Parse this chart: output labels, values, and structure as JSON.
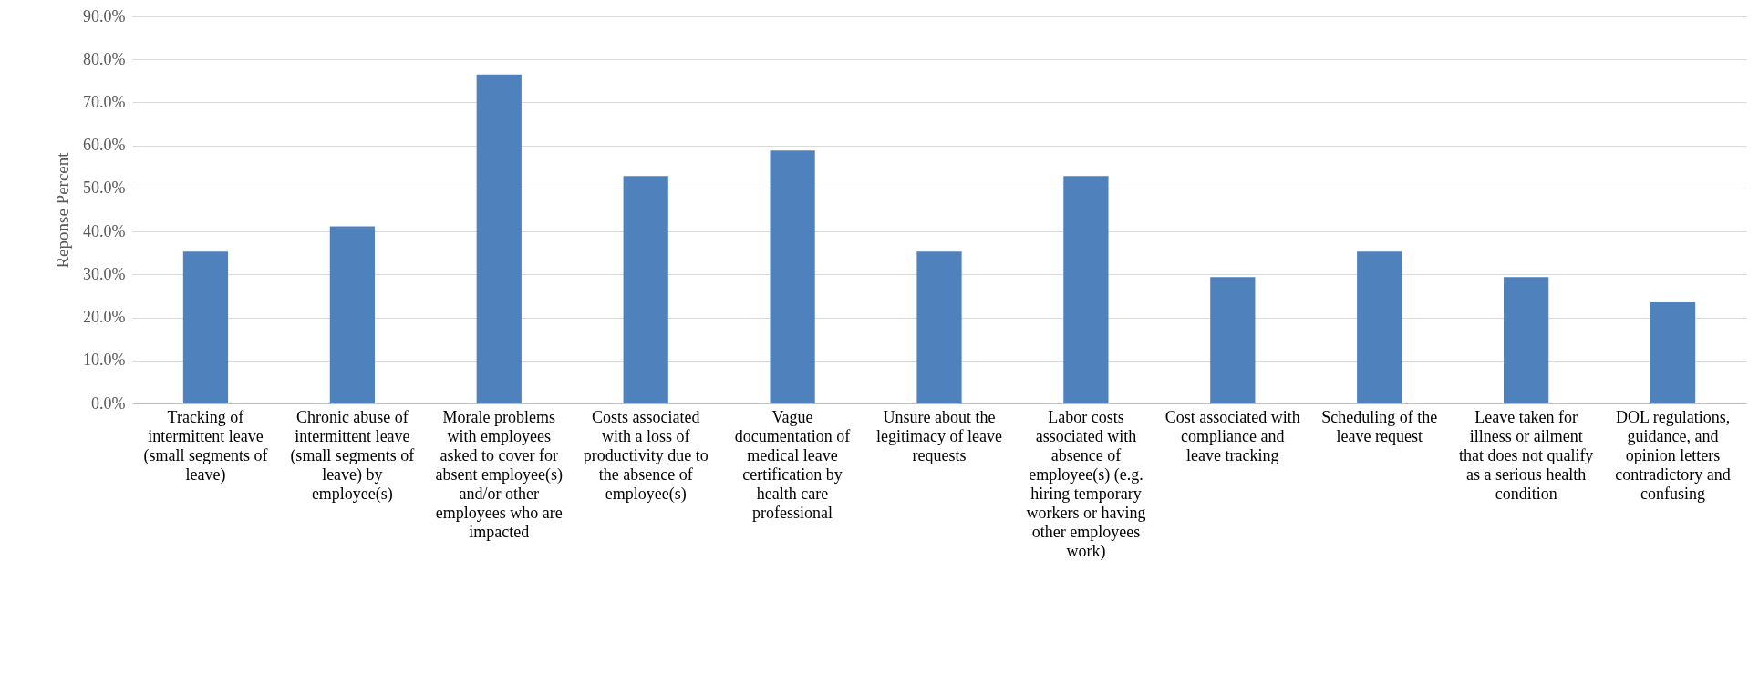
{
  "chart_data": {
    "type": "bar",
    "ylabel": "Reponse Percent",
    "categories": [
      "Tracking of intermittent leave (small segments of leave)",
      "Chronic abuse of intermittent leave (small segments of leave) by employee(s)",
      "Morale problems with employees asked to cover for absent employee(s) and/or other employees who are impacted",
      "Costs associated with a loss of productivity due to the absence of employee(s)",
      "Vague documentation of medical leave certification by health care professional",
      "Unsure about the legitimacy of leave requests",
      "Labor costs associated with absence of employee(s) (e.g. hiring temporary workers or having other employees work)",
      "Cost associated with compliance and leave tracking",
      "Scheduling of the leave request",
      "Leave taken for illness or ailment that does not qualify as a serious health condition",
      "DOL regulations, guidance, and opinion letters contradictory and confusing"
    ],
    "values": [
      35.3,
      41.2,
      76.5,
      52.9,
      58.8,
      35.3,
      52.9,
      29.4,
      35.3,
      29.4,
      23.5
    ],
    "color": "#4f81bd",
    "ylim": [
      0,
      90
    ],
    "yticks": [
      {
        "value": 0,
        "label": "0.0%"
      },
      {
        "value": 10,
        "label": "10.0%"
      },
      {
        "value": 20,
        "label": "20.0%"
      },
      {
        "value": 30,
        "label": "30.0%"
      },
      {
        "value": 40,
        "label": "40.0%"
      },
      {
        "value": 50,
        "label": "50.0%"
      },
      {
        "value": 60,
        "label": "60.0%"
      },
      {
        "value": 70,
        "label": "70.0%"
      },
      {
        "value": 80,
        "label": "80.0%"
      },
      {
        "value": 90,
        "label": "90.0%"
      }
    ],
    "grid": "y"
  }
}
